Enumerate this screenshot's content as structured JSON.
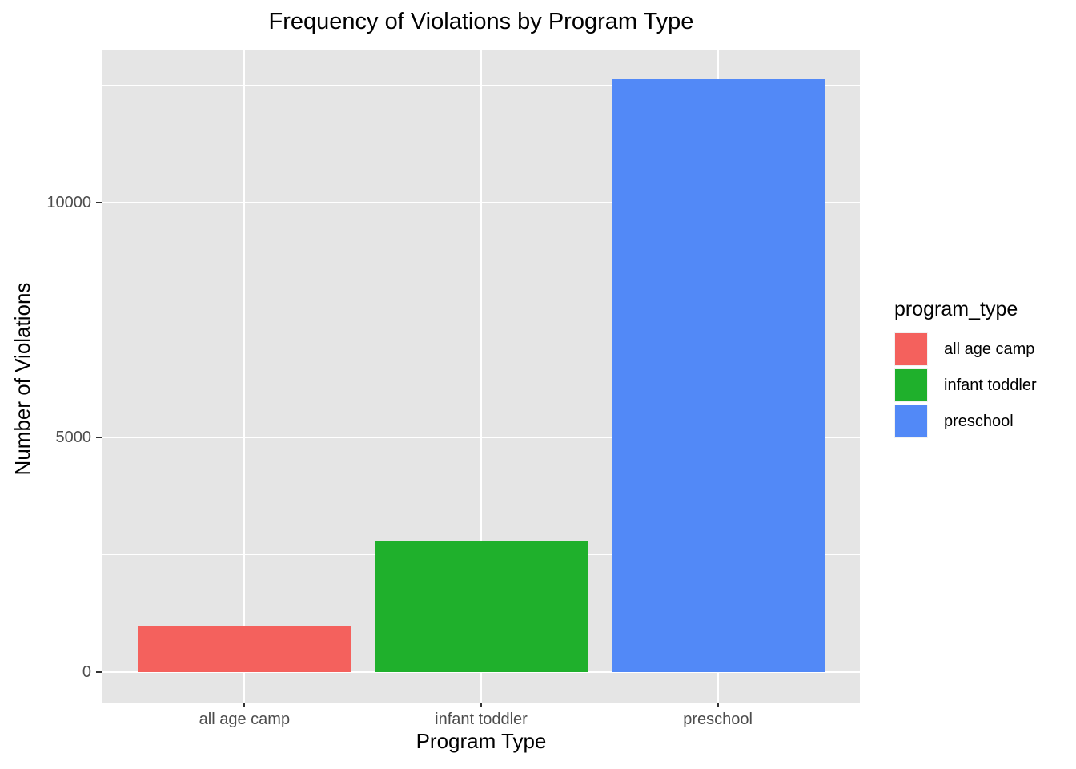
{
  "chart_data": {
    "type": "bar",
    "title": "Frequency of Violations by Program Type",
    "xlabel": "Program Type",
    "ylabel": "Number of Violations",
    "categories": [
      "all age camp",
      "infant toddler",
      "preschool"
    ],
    "values": [
      970,
      2800,
      12630
    ],
    "bar_colors": [
      "#F4615D",
      "#1FB02C",
      "#5289F7"
    ],
    "yticks": [
      0,
      5000,
      10000
    ],
    "ytick_labels": [
      "0",
      "5000",
      "10000"
    ],
    "minor_yticks": [
      2500,
      7500,
      12500
    ],
    "ylim": [
      -640,
      13340
    ],
    "grid": true,
    "legend_position": "right",
    "panel_background": "#E5E5E5",
    "grid_color": "#FFFFFF"
  },
  "legend": {
    "title": "program_type",
    "items": [
      {
        "label": "all age camp",
        "color": "#F4615D",
        "swatch_name": "legend-swatch-all-age-camp"
      },
      {
        "label": "infant toddler",
        "color": "#1FB02C",
        "swatch_name": "legend-swatch-infant-toddler"
      },
      {
        "label": "preschool",
        "color": "#5289F7",
        "swatch_name": "legend-swatch-preschool"
      }
    ]
  }
}
